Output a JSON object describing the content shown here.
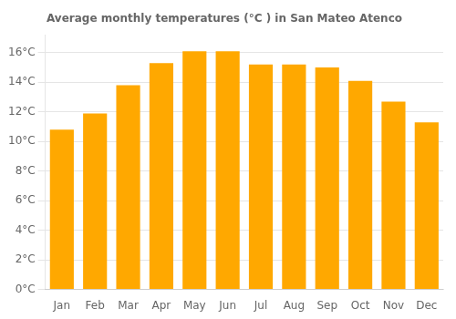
{
  "chart_data": {
    "type": "bar",
    "title": "Average monthly temperatures (°C ) in San Mateo Atenco",
    "categories": [
      "Jan",
      "Feb",
      "Mar",
      "Apr",
      "May",
      "Jun",
      "Jul",
      "Aug",
      "Sep",
      "Oct",
      "Nov",
      "Dec"
    ],
    "values": [
      10.8,
      11.9,
      13.8,
      15.3,
      16.1,
      16.1,
      15.2,
      15.2,
      15.0,
      14.1,
      12.7,
      11.3
    ],
    "color": "#FFA800",
    "ylim": [
      0,
      17.2
    ],
    "yticks": [
      {
        "value": 0,
        "label": "0°C"
      },
      {
        "value": 2,
        "label": "2°C"
      },
      {
        "value": 4,
        "label": "4°C"
      },
      {
        "value": 6,
        "label": "6°C"
      },
      {
        "value": 8,
        "label": "8°C"
      },
      {
        "value": 10,
        "label": "10°C"
      },
      {
        "value": 12,
        "label": "12°C"
      },
      {
        "value": 14,
        "label": "14°C"
      },
      {
        "value": 16,
        "label": "16°C"
      }
    ],
    "grid": true
  }
}
